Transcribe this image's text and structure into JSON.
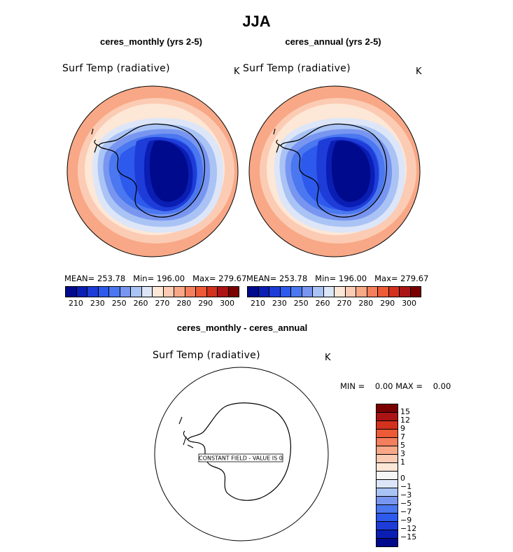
{
  "title": "JJA",
  "panels": [
    {
      "title": "ceres_monthly (yrs 2-5)",
      "variable": "Surf Temp (radiative)",
      "units": "K",
      "stats": {
        "mean_label": "MEAN=",
        "mean": "253.78",
        "min_label": "Min=",
        "min": "196.00",
        "max_label": "Max=",
        "max": "279.67"
      }
    },
    {
      "title": "ceres_annual (yrs 2-5)",
      "variable": "Surf Temp (radiative)",
      "units": "K",
      "stats": {
        "mean_label": "MEAN=",
        "mean": "253.78",
        "min_label": "Min=",
        "min": "196.00",
        "max_label": "Max=",
        "max": "279.67"
      }
    }
  ],
  "colorbar": {
    "colors": [
      "#000a8c",
      "#0a1eb4",
      "#1e3cd8",
      "#2d5aec",
      "#4b78f0",
      "#7896f0",
      "#aac3f5",
      "#dce6f8",
      "#fde7d6",
      "#fccbb3",
      "#f8a886",
      "#f47f5c",
      "#ec5a36",
      "#d2321e",
      "#aa1414",
      "#7a0000"
    ],
    "tick_labels": [
      "210",
      "230",
      "250",
      "260",
      "270",
      "280",
      "290",
      "300"
    ]
  },
  "diff_panel": {
    "title": "ceres_monthly - ceres_annual",
    "variable": "Surf Temp (radiative)",
    "units": "K",
    "min_label": "MIN =",
    "min": "0.00",
    "max_label": "MAX =",
    "max": "0.00",
    "annotation": "CONSTANT FIELD - VALUE IS 0",
    "colorbar_colors": [
      "#7a0000",
      "#aa1414",
      "#d2321e",
      "#ec5a36",
      "#f47f5c",
      "#f8a886",
      "#fccbb3",
      "#fde7d6",
      "#f5f5f5",
      "#dce6f8",
      "#aac3f5",
      "#7896f0",
      "#4b78f0",
      "#2d5aec",
      "#1e3cd8",
      "#0a1eb4",
      "#000a8c"
    ],
    "tick_labels": [
      "15",
      "12",
      "9",
      "7",
      "5",
      "3",
      "1",
      "0",
      "−1",
      "−3",
      "−5",
      "−7",
      "−9",
      "−12",
      "−15"
    ]
  }
}
